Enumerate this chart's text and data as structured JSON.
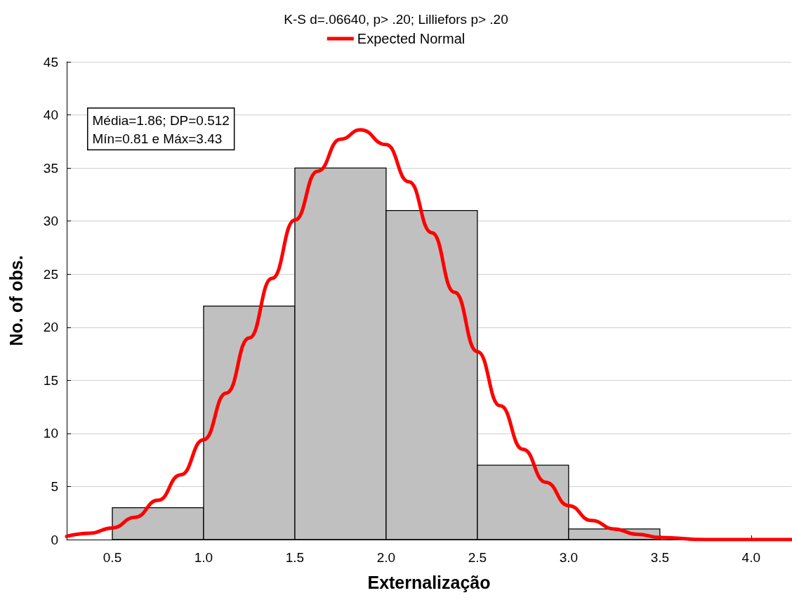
{
  "chart_data": {
    "type": "histogram",
    "title": "K-S d=.06640, p> .20; Lilliefors p> .20",
    "xlabel": "Externalização",
    "ylabel": "No. of obs.",
    "bins": [
      0.5,
      1.0,
      1.5,
      2.0,
      2.5,
      3.0,
      3.5
    ],
    "values": [
      3,
      22,
      35,
      31,
      7,
      1
    ],
    "color": "#c0c0c0",
    "series": [
      {
        "type": "line",
        "name": "Expected Normal",
        "color": "#ff0000",
        "x": [
          0.25,
          0.375,
          0.5,
          0.625,
          0.75,
          0.875,
          1.0,
          1.125,
          1.25,
          1.375,
          1.5,
          1.625,
          1.75,
          1.86,
          2.0,
          2.125,
          2.25,
          2.375,
          2.5,
          2.625,
          2.75,
          2.875,
          3.0,
          3.125,
          3.25,
          3.375,
          3.5,
          3.75,
          4.0,
          4.22
        ],
        "values": [
          0.3,
          0.6,
          1.1,
          2.1,
          3.7,
          6.1,
          9.4,
          13.8,
          19,
          24.6,
          30.1,
          34.7,
          37.7,
          38.6,
          37.2,
          33.7,
          28.9,
          23.3,
          17.7,
          12.6,
          8.5,
          5.4,
          3.2,
          1.8,
          1.0,
          0.5,
          0.2,
          0.0,
          0.0,
          0.0
        ]
      }
    ],
    "annotations": [
      "Média=1.86; DP=0.512",
      "Mín=0.81 e Máx=3.43"
    ],
    "xlim": [
      0.25,
      4.22
    ],
    "xticks": [
      0.5,
      {
        "value": 1,
        "label": "1.0"
      },
      1.5,
      {
        "value": 2,
        "label": "2.0"
      },
      2.5,
      {
        "value": 3,
        "label": "3.0"
      },
      3.5,
      {
        "value": 4,
        "label": "4.0"
      }
    ],
    "ylim": [
      0,
      45
    ],
    "yticks": [
      0,
      5,
      10,
      15,
      20,
      25,
      30,
      35,
      40,
      45
    ],
    "grid": "y",
    "legend": "top",
    "marker": "none",
    "line_style": "solid"
  }
}
